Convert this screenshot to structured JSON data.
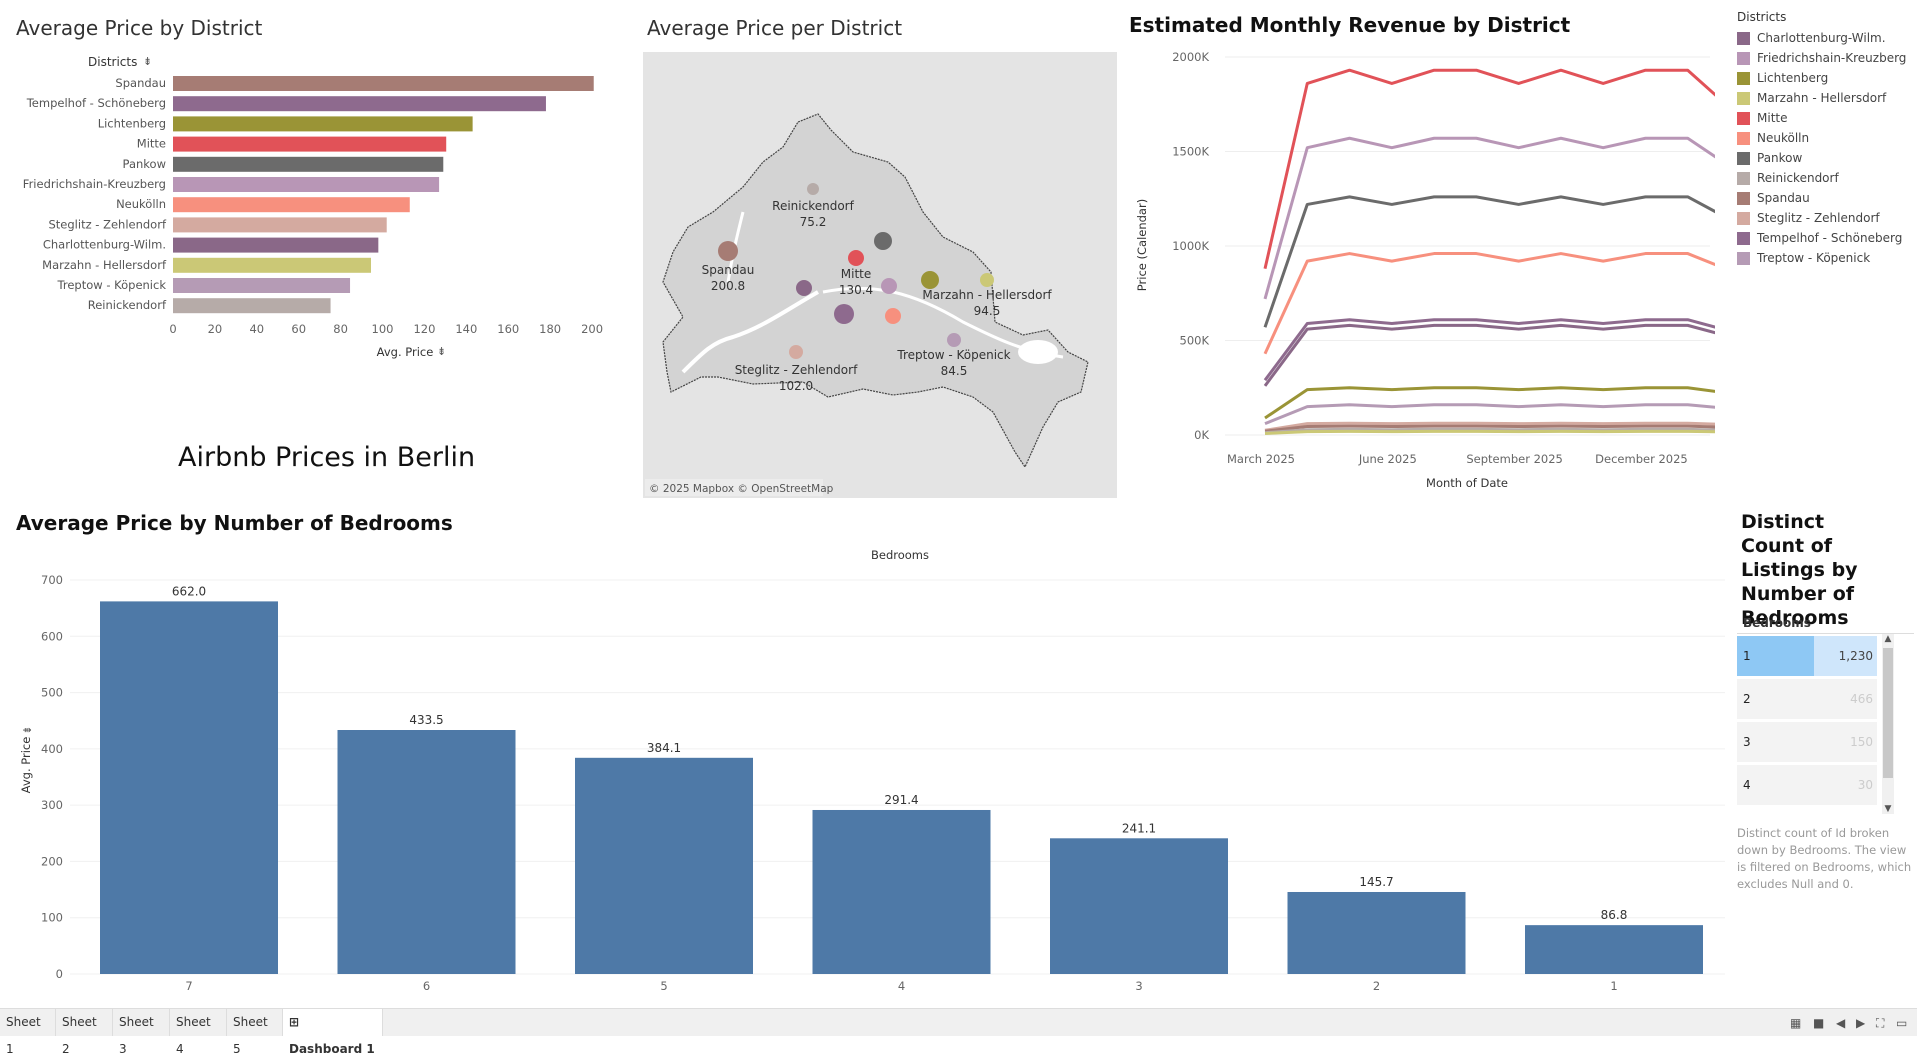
{
  "titles": {
    "district_bar": "Average Price by District",
    "map": "Average Price per District",
    "revenue": "Estimated Monthly Revenue by District",
    "dashboard": "Airbnb Prices in Berlin",
    "bedrooms": "Average Price by Number of Bedrooms",
    "count": "Distinct Count of Listings by Number of Bedrooms"
  },
  "colors": {
    "Spandau": "#a67c74",
    "Tempelhof - Schöneberg": "#8e6a8e",
    "Lichtenberg": "#9a9436",
    "Mitte": "#e15258",
    "Pankow": "#6b6b6b",
    "Friedrichshain-Kreuzberg": "#b896b6",
    "Neukölln": "#f7907e",
    "Steglitz - Zehlendorf": "#d4aaa0",
    "Charlottenburg-Wilm.": "#8a6888",
    "Marzahn - Hellersdorf": "#cbc876",
    "Treptow - Köpenick": "#b59bb5",
    "Reinickendorf": "#b6aba8",
    "bedroom_bar": "#4e79a7"
  },
  "district_chart": {
    "type": "bar",
    "header": "Districts",
    "categories": [
      "Spandau",
      "Tempelhof - Schöneberg",
      "Lichtenberg",
      "Mitte",
      "Pankow",
      "Friedrichshain-Kreuzberg",
      "Neukölln",
      "Steglitz - Zehlendorf",
      "Charlottenburg-Wilm.",
      "Marzahn - Hellersdorf",
      "Treptow - Köpenick",
      "Reinickendorf"
    ],
    "values": [
      200.8,
      178,
      143,
      130.4,
      129,
      127,
      113,
      102.0,
      98,
      94.5,
      84.5,
      75.2
    ],
    "xlabel": "Avg. Price",
    "xticks": [
      0,
      20,
      40,
      60,
      80,
      100,
      120,
      140,
      160,
      180,
      200
    ],
    "xlim": [
      0,
      210
    ]
  },
  "map": {
    "attribution": "© 2025 Mapbox © OpenStreetMap",
    "labels": [
      {
        "name": "Reinickendorf",
        "value": "75.2"
      },
      {
        "name": "Spandau",
        "value": "200.8"
      },
      {
        "name": "Mitte",
        "value": "130.4"
      },
      {
        "name": "Marzahn - Hellersdorf",
        "value": "94.5"
      },
      {
        "name": "Treptow - Köpenick",
        "value": "84.5"
      },
      {
        "name": "Steglitz - Zehlendorf",
        "value": "102.0"
      }
    ]
  },
  "revenue_chart": {
    "type": "line",
    "xlabel": "Month of Date",
    "ylabel": "Price (Calendar)",
    "x_tick_labels": [
      "March 2025",
      "June 2025",
      "September 2025",
      "December 2025"
    ],
    "y_tick_labels": [
      "0K",
      "500K",
      "1000K",
      "1500K",
      "2000K"
    ],
    "ylim": [
      0,
      2000000
    ],
    "series": [
      {
        "name": "Mitte",
        "values": [
          880000,
          1860000,
          1930000,
          1860000,
          1930000,
          1930000,
          1860000,
          1930000,
          1860000,
          1930000,
          1930000,
          1730000
        ]
      },
      {
        "name": "Friedrichshain-Kreuzberg",
        "values": [
          720000,
          1520000,
          1570000,
          1520000,
          1570000,
          1570000,
          1520000,
          1570000,
          1520000,
          1570000,
          1570000,
          1420000
        ]
      },
      {
        "name": "Pankow",
        "values": [
          570000,
          1220000,
          1260000,
          1220000,
          1260000,
          1260000,
          1220000,
          1260000,
          1220000,
          1260000,
          1260000,
          1140000
        ]
      },
      {
        "name": "Neukölln",
        "values": [
          430000,
          920000,
          960000,
          920000,
          960000,
          960000,
          920000,
          960000,
          920000,
          960000,
          960000,
          870000
        ]
      },
      {
        "name": "Tempelhof - Schöneberg",
        "values": [
          290000,
          590000,
          610000,
          590000,
          610000,
          610000,
          590000,
          610000,
          590000,
          610000,
          610000,
          550000
        ]
      },
      {
        "name": "Charlottenburg-Wilm.",
        "values": [
          260000,
          560000,
          580000,
          560000,
          580000,
          580000,
          560000,
          580000,
          560000,
          580000,
          580000,
          520000
        ]
      },
      {
        "name": "Lichtenberg",
        "values": [
          90000,
          240000,
          250000,
          240000,
          250000,
          250000,
          240000,
          250000,
          240000,
          250000,
          250000,
          220000
        ]
      },
      {
        "name": "Treptow - Köpenick",
        "values": [
          60000,
          150000,
          160000,
          150000,
          160000,
          160000,
          150000,
          160000,
          150000,
          160000,
          160000,
          140000
        ]
      },
      {
        "name": "Steglitz - Zehlendorf",
        "values": [
          25000,
          60000,
          62000,
          60000,
          62000,
          62000,
          60000,
          62000,
          60000,
          62000,
          62000,
          55000
        ]
      },
      {
        "name": "Spandau",
        "values": [
          20000,
          45000,
          47000,
          45000,
          47000,
          47000,
          45000,
          47000,
          45000,
          47000,
          47000,
          40000
        ]
      },
      {
        "name": "Reinickendorf",
        "values": [
          12000,
          28000,
          30000,
          28000,
          30000,
          30000,
          28000,
          30000,
          28000,
          30000,
          30000,
          25000
        ]
      },
      {
        "name": "Marzahn - Hellersdorf",
        "values": [
          8000,
          18000,
          19000,
          18000,
          19000,
          19000,
          18000,
          19000,
          18000,
          19000,
          19000,
          16000
        ]
      }
    ]
  },
  "legend": {
    "title": "Districts",
    "items": [
      "Charlottenburg-Wilm.",
      "Friedrichshain-Kreuzberg",
      "Lichtenberg",
      "Marzahn - Hellersdorf",
      "Mitte",
      "Neukölln",
      "Pankow",
      "Reinickendorf",
      "Spandau",
      "Steglitz - Zehlendorf",
      "Tempelhof - Schöneberg",
      "Treptow - Köpenick"
    ]
  },
  "bedroom_chart": {
    "type": "bar",
    "header": "Bedrooms",
    "ylabel": "Avg. Price",
    "categories": [
      "7",
      "6",
      "5",
      "4",
      "3",
      "2",
      "1"
    ],
    "values": [
      662.0,
      433.5,
      384.1,
      291.4,
      241.1,
      145.7,
      86.8
    ],
    "value_labels": [
      "662.0",
      "433.5",
      "384.1",
      "291.4",
      "241.1",
      "145.7",
      "86.8"
    ],
    "yticks": [
      0,
      100,
      200,
      300,
      400,
      500,
      600,
      700
    ],
    "ylim": [
      0,
      700
    ]
  },
  "count_table": {
    "header": "Bedrooms",
    "rows": [
      {
        "label": "1",
        "value": "1,230",
        "fraction": 0.55,
        "selected": true
      },
      {
        "label": "2",
        "value": "466",
        "selected": false
      },
      {
        "label": "3",
        "value": "150",
        "selected": false
      },
      {
        "label": "4",
        "value": "30",
        "selected": false
      }
    ],
    "note": "Distinct count of Id broken down by Bedrooms. The view is filtered on Bedrooms, which excludes Null and 0."
  },
  "tabs": [
    "Sheet 1",
    "Sheet 2",
    "Sheet 3",
    "Sheet 4",
    "Sheet 5",
    "Dashboard 1"
  ],
  "active_tab": "Dashboard 1"
}
